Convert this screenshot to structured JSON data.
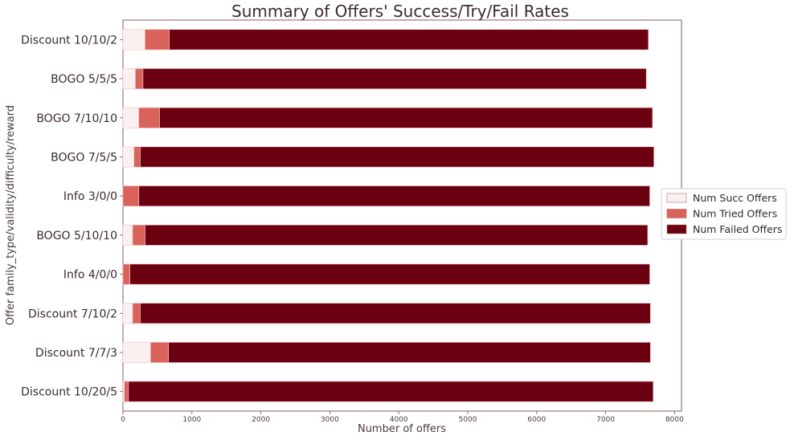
{
  "chart_data": {
    "type": "bar",
    "orientation": "horizontal",
    "stacked": true,
    "title": "Summary of Offers' Success/Try/Fail Rates",
    "xlabel": "Number of offers",
    "ylabel": "Offer family_type/validity/difficulty/reward",
    "xlim": [
      0,
      8100
    ],
    "xticks": [
      0,
      1000,
      2000,
      3000,
      4000,
      5000,
      6000,
      7000,
      8000
    ],
    "grid": false,
    "legend_position": "right",
    "categories": [
      "Discount 10/10/2",
      "BOGO 5/5/5",
      "BOGO 7/10/10",
      "BOGO 7/5/5",
      "Info 3/0/0",
      "BOGO 5/10/10",
      "Info 4/0/0",
      "Discount 7/10/2",
      "Discount 7/7/3",
      "Discount 10/20/5"
    ],
    "series": [
      {
        "name": "Num Succ Offers",
        "color": "#fbf0f0",
        "values": [
          320,
          180,
          230,
          160,
          0,
          140,
          0,
          140,
          400,
          20
        ]
      },
      {
        "name": "Num Tried Offers",
        "color": "#d9625a",
        "values": [
          350,
          110,
          300,
          90,
          230,
          180,
          100,
          110,
          260,
          60
        ]
      },
      {
        "name": "Num Failed Offers",
        "color": "#6b0010",
        "values": [
          6950,
          7300,
          7150,
          7450,
          7410,
          7290,
          7540,
          7400,
          6990,
          7610
        ]
      }
    ]
  }
}
